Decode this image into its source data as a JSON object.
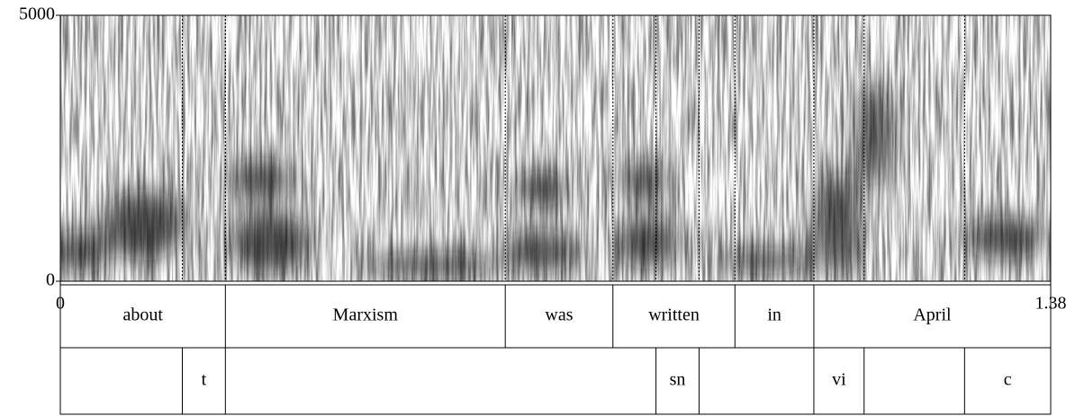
{
  "chart_data": {
    "type": "spectrogram",
    "xlim": [
      0,
      1.38
    ],
    "xticks": [
      0,
      1.38
    ],
    "ylim": [
      0,
      5000
    ],
    "yticks": [
      0,
      5000
    ],
    "tiers": [
      {
        "boundaries": [
          0,
          0.23,
          0.62,
          0.77,
          0.94,
          1.05,
          1.38
        ],
        "labels": [
          "about",
          "Marxism",
          "was",
          "written",
          "in",
          "April"
        ]
      },
      {
        "boundaries": [
          0,
          0.17,
          0.23,
          0.83,
          0.89,
          1.05,
          1.12,
          1.26,
          1.38
        ],
        "labels": [
          null,
          "t",
          null,
          "sn",
          null,
          "vi",
          null,
          "c"
        ]
      }
    ]
  }
}
